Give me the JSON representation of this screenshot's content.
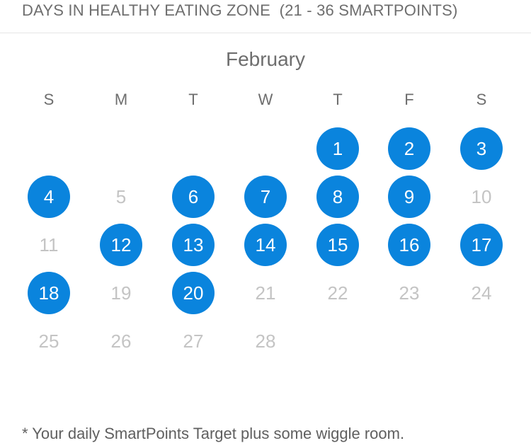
{
  "header": {
    "title": "DAYS IN HEALTHY EATING ZONE  (21 - 36 SMARTPOINTS)"
  },
  "calendar": {
    "month": "February",
    "weekdays": [
      "S",
      "M",
      "T",
      "W",
      "T",
      "F",
      "S"
    ],
    "first_weekday_index": 4,
    "days": [
      {
        "label": "1",
        "in_zone": true
      },
      {
        "label": "2",
        "in_zone": true
      },
      {
        "label": "3",
        "in_zone": true
      },
      {
        "label": "4",
        "in_zone": true
      },
      {
        "label": "5",
        "in_zone": false
      },
      {
        "label": "6",
        "in_zone": true
      },
      {
        "label": "7",
        "in_zone": true
      },
      {
        "label": "8",
        "in_zone": true
      },
      {
        "label": "9",
        "in_zone": true
      },
      {
        "label": "10",
        "in_zone": false
      },
      {
        "label": "11",
        "in_zone": false
      },
      {
        "label": "12",
        "in_zone": true
      },
      {
        "label": "13",
        "in_zone": true
      },
      {
        "label": "14",
        "in_zone": true
      },
      {
        "label": "15",
        "in_zone": true
      },
      {
        "label": "16",
        "in_zone": true
      },
      {
        "label": "17",
        "in_zone": true
      },
      {
        "label": "18",
        "in_zone": true
      },
      {
        "label": "19",
        "in_zone": false
      },
      {
        "label": "20",
        "in_zone": true
      },
      {
        "label": "21",
        "in_zone": false
      },
      {
        "label": "22",
        "in_zone": false
      },
      {
        "label": "23",
        "in_zone": false
      },
      {
        "label": "24",
        "in_zone": false
      },
      {
        "label": "25",
        "in_zone": false
      },
      {
        "label": "26",
        "in_zone": false
      },
      {
        "label": "27",
        "in_zone": false
      },
      {
        "label": "28",
        "in_zone": false
      }
    ]
  },
  "colors": {
    "in_zone_fill": "#0a84dd",
    "in_zone_text": "#ffffff",
    "out_zone_text": "#c4c4c4"
  },
  "footer": {
    "note": "* Your daily SmartPoints Target plus some wiggle room."
  }
}
